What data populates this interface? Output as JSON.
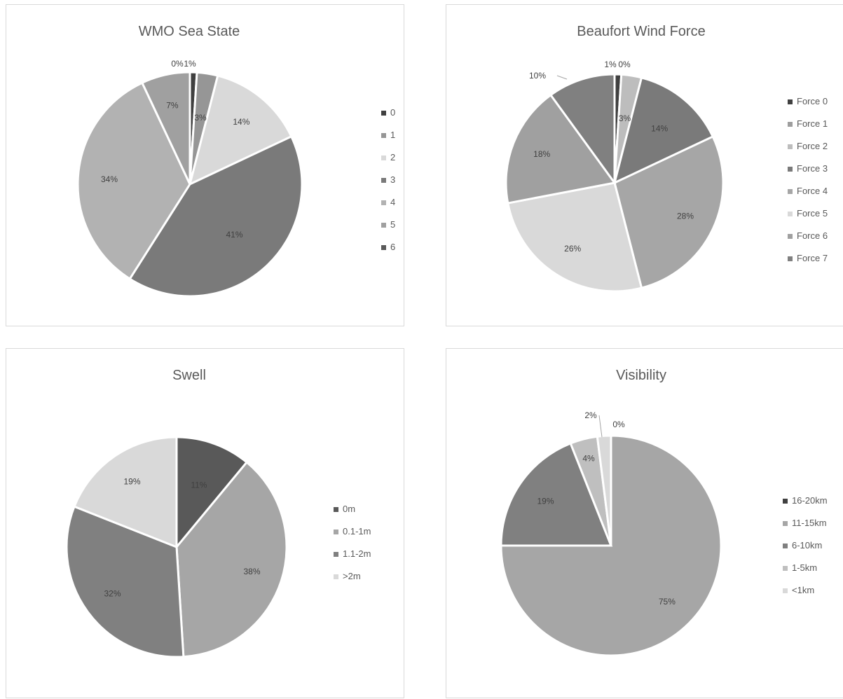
{
  "colors": {
    "edge": "#ffffff",
    "border": "#d9d9d9",
    "title": "#595959",
    "label": "#404040",
    "leader": "#a6a6a6"
  },
  "chart_data": [
    {
      "type": "pie",
      "title": "WMO Sea State",
      "legend_position": "right",
      "slices": [
        {
          "label": "0",
          "value": 1,
          "data_label": "1%",
          "color": "#404040"
        },
        {
          "label": "1",
          "value": 3,
          "data_label": "3%",
          "color": "#969696"
        },
        {
          "label": "2",
          "value": 14,
          "data_label": "14%",
          "color": "#d9d9d9"
        },
        {
          "label": "3",
          "value": 41,
          "data_label": "41%",
          "color": "#7a7a7a"
        },
        {
          "label": "4",
          "value": 34,
          "data_label": "34%",
          "color": "#b2b2b2"
        },
        {
          "label": "5",
          "value": 7,
          "data_label": "7%",
          "color": "#a0a0a0"
        },
        {
          "label": "6",
          "value": 0,
          "data_label": "0%",
          "color": "#5a5a5a"
        }
      ]
    },
    {
      "type": "pie",
      "title": "Beaufort Wind Force",
      "legend_position": "right",
      "slices": [
        {
          "label": "Force 0",
          "value": 1,
          "data_label": "1%",
          "color": "#404040"
        },
        {
          "label": "Force 1",
          "value": 0,
          "data_label": "0%",
          "color": "#9e9e9e"
        },
        {
          "label": "Force 2",
          "value": 3,
          "data_label": "3%",
          "color": "#bdbdbd"
        },
        {
          "label": "Force 3",
          "value": 14,
          "data_label": "14%",
          "color": "#7a7a7a"
        },
        {
          "label": "Force 4",
          "value": 28,
          "data_label": "28%",
          "color": "#a6a6a6"
        },
        {
          "label": "Force 5",
          "value": 26,
          "data_label": "26%",
          "color": "#d9d9d9"
        },
        {
          "label": "Force 6",
          "value": 18,
          "data_label": "18%",
          "color": "#a0a0a0"
        },
        {
          "label": "Force 7",
          "value": 10,
          "data_label": "10%",
          "color": "#808080"
        }
      ]
    },
    {
      "type": "pie",
      "title": "Swell",
      "legend_position": "right",
      "slices": [
        {
          "label": "0m",
          "value": 11,
          "data_label": "11%",
          "color": "#595959"
        },
        {
          "label": "0.1-1m",
          "value": 38,
          "data_label": "38%",
          "color": "#a6a6a6"
        },
        {
          "label": "1.1-2m",
          "value": 32,
          "data_label": "32%",
          "color": "#808080"
        },
        {
          "label": ">2m",
          "value": 19,
          "data_label": "19%",
          "color": "#d9d9d9"
        }
      ]
    },
    {
      "type": "pie",
      "title": "Visibility",
      "legend_position": "right",
      "slices": [
        {
          "label": "16-20km",
          "value": 0,
          "data_label": "0%",
          "color": "#404040"
        },
        {
          "label": "11-15km",
          "value": 75,
          "data_label": "75%",
          "color": "#a6a6a6"
        },
        {
          "label": "6-10km",
          "value": 19,
          "data_label": "19%",
          "color": "#808080"
        },
        {
          "label": "1-5km",
          "value": 4,
          "data_label": "4%",
          "color": "#bfbfbf"
        },
        {
          "label": "<1km",
          "value": 2,
          "data_label": "2%",
          "color": "#d9d9d9"
        }
      ]
    }
  ]
}
